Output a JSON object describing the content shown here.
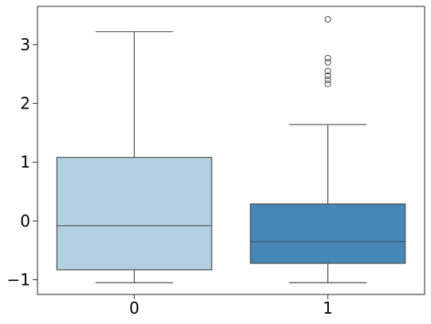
{
  "chart_data": {
    "type": "box",
    "title": "",
    "xlabel": "",
    "ylabel": "",
    "ylim": [
      -1.25,
      3.65
    ],
    "yticks": [
      -1,
      0,
      1,
      2,
      3
    ],
    "ytick_labels": [
      "−1",
      "0",
      "1",
      "2",
      "3"
    ],
    "grid": false,
    "categories": [
      "0",
      "1"
    ],
    "boxes": [
      {
        "category": "0",
        "whisker_low": -1.05,
        "q1": -0.83,
        "median": -0.08,
        "q3": 1.08,
        "whisker_high": 3.22,
        "outliers": [],
        "color": "#b3d0e3"
      },
      {
        "category": "1",
        "whisker_low": -1.05,
        "q1": -0.72,
        "median": -0.35,
        "q3": 0.29,
        "whisker_high": 1.64,
        "outliers": [
          2.33,
          2.4,
          2.47,
          2.55,
          2.7,
          2.77,
          3.43
        ],
        "color": "#4787b7"
      }
    ]
  }
}
